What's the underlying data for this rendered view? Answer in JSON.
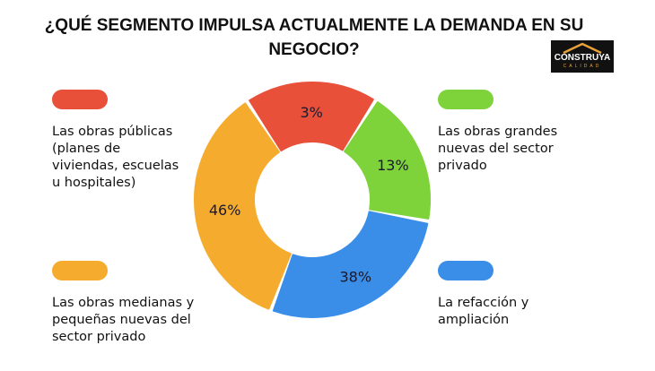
{
  "title_line1": "¿QUÉ SEGMENTO IMPULSA ACTUALMENTE LA DEMANDA EN SU",
  "title_line2": "NEGOCIO?",
  "logo": {
    "name": "CONSTRUYA",
    "sub": "CALIDAD"
  },
  "chart_data": {
    "type": "pie",
    "donut": true,
    "title": "¿QUÉ SEGMENTO IMPULSA ACTUALMENTE LA DEMANDA EN SU NEGOCIO?",
    "categories": [
      "Las obras públicas (planes de viviendas, escuelas u hospitales)",
      "Las obras grandes nuevas del sector privado",
      "La refacción y ampliación",
      "Las obras medianas y pequeñas nuevas del sector privado"
    ],
    "values": [
      3,
      13,
      38,
      46
    ],
    "labels": [
      "3%",
      "13%",
      "38%",
      "46%"
    ],
    "colors": [
      "#e8503a",
      "#7ed23a",
      "#3a8ee8",
      "#f5ac2e"
    ],
    "legend": [
      {
        "lines": [
          "Las obras públicas",
          "(planes de",
          "viviendas, escuelas",
          "u hospitales)"
        ]
      },
      {
        "lines": [
          "Las obras grandes",
          "nuevas del sector",
          "privado"
        ]
      },
      {
        "lines": [
          "La refacción y",
          "ampliación"
        ]
      },
      {
        "lines": [
          "Las obras medianas y",
          "pequeñas nuevas del",
          "sector privado"
        ]
      }
    ]
  }
}
